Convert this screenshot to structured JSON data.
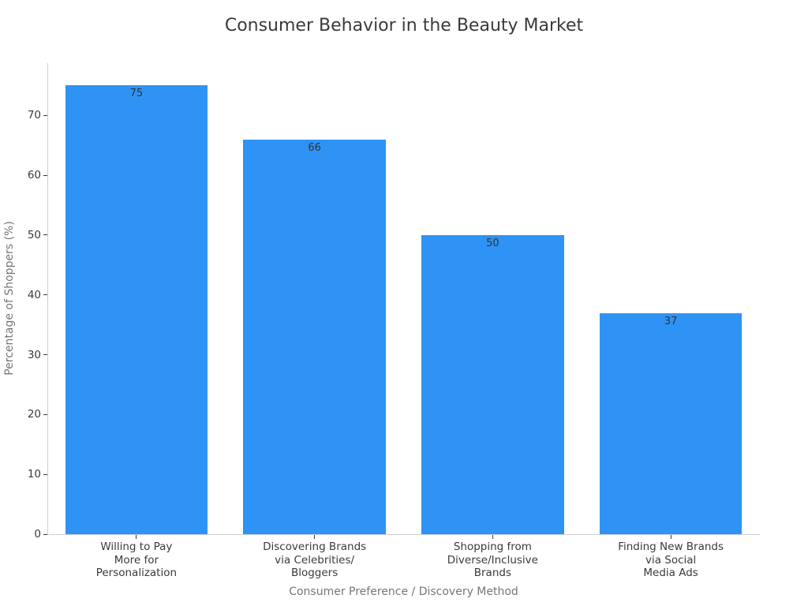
{
  "figure": {
    "background": "#ffffff"
  },
  "chart_data": {
    "type": "bar",
    "title": "Consumer Behavior in the Beauty Market",
    "xlabel": "Consumer Preference / Discovery Method",
    "ylabel": "Percentage of Shoppers (%)",
    "categories": [
      "Willing to Pay\nMore for\nPersonalization",
      "Discovering Brands\nvia Celebrities/\nBloggers",
      "Shopping from\nDiverse/Inclusive\nBrands",
      "Finding New Brands\nvia Social\nMedia Ads"
    ],
    "values": [
      75,
      66,
      50,
      37
    ],
    "value_labels": [
      "75",
      "66",
      "50",
      "37"
    ],
    "ylim": [
      0,
      78.75
    ],
    "yticks": [
      0,
      10,
      20,
      30,
      40,
      50,
      60,
      70
    ],
    "bar_width_fraction": 0.8,
    "grid": false,
    "legend": null,
    "colors": {
      "bar": "#2E93F5",
      "title": "#3a3a3a",
      "tick_label": "#3a3a3a",
      "axis_title": "#767676",
      "value_label": "#333333",
      "spine": "#cfcfcf",
      "tick_mark": "#3a3a3a"
    }
  }
}
